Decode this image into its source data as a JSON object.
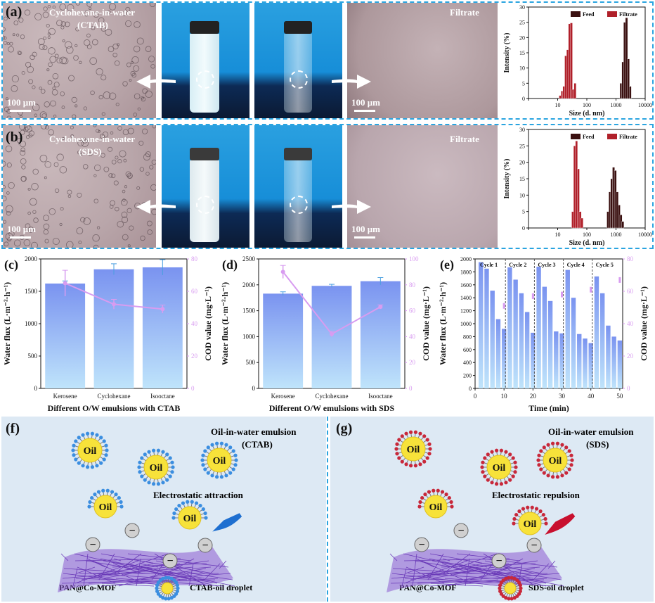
{
  "colors": {
    "frame": "#2aa4e0",
    "bar_blue": "#7a93f0",
    "bar_light": "#bfe4fb",
    "cod_line": "#d89cf0",
    "feed": "#3a1010",
    "filtrate": "#b0202a",
    "mof_purple": "#8a5ad0",
    "panel_bg": "#dde9f4",
    "oil_yellow": "#f7e23a",
    "ctab_head": "#3b8ee0",
    "sds_head": "#c8283a"
  },
  "panel_a": {
    "letter": "(a)",
    "title_line1": "Cyclohexane-in-water",
    "title_line2": "(CTAB)",
    "scale_left": "100 μm",
    "filtrate": "Filtrate",
    "scale_right": "100 μm"
  },
  "panel_b": {
    "letter": "(b)",
    "title_line1": "Cyclohexane-in-water",
    "title_line2": "(SDS)",
    "scale_left": "100 μm",
    "filtrate": "Filtrate",
    "scale_right": "100 μm"
  },
  "panel_c": {
    "letter": "(c)"
  },
  "panel_d": {
    "letter": "(d)"
  },
  "panel_e": {
    "letter": "(e)"
  },
  "panel_f": {
    "letter": "(f)",
    "title_line1": "Oil-in-water emulsion",
    "title_line2": "(CTAB)",
    "interaction": "Electrostatic attraction",
    "oil": "Oil",
    "membrane": "PAN@Co-MOF",
    "droplet": "CTAB-oil droplet"
  },
  "panel_g": {
    "letter": "(g)",
    "title_line1": "Oil-in-water emulsion",
    "title_line2": "(SDS)",
    "interaction": "Electrostatic repulsion",
    "oil": "Oil",
    "membrane": "PAN@Co-MOF",
    "droplet": "SDS-oil droplet"
  },
  "chart_data": [
    {
      "id": "a_dls",
      "type": "bar",
      "xlabel": "Size (d. nm)",
      "ylabel": "Intensity (%)",
      "xscale": "log",
      "xlim": [
        1,
        10000
      ],
      "xticks": [
        "1",
        "10",
        "100",
        "1000",
        "10000"
      ],
      "ylim": [
        0,
        30
      ],
      "yticks": [
        "0",
        "5",
        "10",
        "15",
        "20",
        "25",
        "30"
      ],
      "legend": "top-right",
      "series": [
        {
          "name": "Feed",
          "color": "#3a1010",
          "x": [
            1480,
            1720,
            1990,
            2300,
            2660,
            3080
          ],
          "y": [
            5,
            12,
            25,
            26.5,
            13,
            4
          ]
        },
        {
          "name": "Filtrate",
          "color": "#b0202a",
          "x": [
            12.2,
            14.2,
            16.4,
            19,
            22,
            25.5,
            29.5,
            34,
            39.5
          ],
          "y": [
            1,
            2.5,
            4,
            14,
            16,
            24.5,
            24.8,
            3,
            5
          ]
        }
      ]
    },
    {
      "id": "b_dls",
      "type": "bar",
      "xlabel": "Size (d. nm)",
      "ylabel": "Intensity (%)",
      "xscale": "log",
      "xlim": [
        1,
        10000
      ],
      "xticks": [
        "1",
        "10",
        "100",
        "1000",
        "10000"
      ],
      "ylim": [
        0,
        30
      ],
      "yticks": [
        "0",
        "5",
        "10",
        "15",
        "20",
        "25",
        "30"
      ],
      "legend": "top-right",
      "series": [
        {
          "name": "Feed",
          "color": "#3a1010",
          "x": [
            530,
            615,
            712,
            825,
            955,
            1106,
            1281,
            1484,
            1718
          ],
          "y": [
            5,
            11,
            15,
            18.5,
            17.5,
            11,
            7,
            4,
            2
          ]
        },
        {
          "name": "Filtrate",
          "color": "#b0202a",
          "x": [
            33,
            38.2,
            44.2,
            51.2,
            59.3,
            68.6
          ],
          "y": [
            5,
            25,
            26.5,
            18,
            5,
            3
          ]
        }
      ]
    },
    {
      "id": "c",
      "type": "bar",
      "xlabel": "Different O/W emulsions with CTAB",
      "ylabel": "Water flux (L·m⁻²·h⁻¹)",
      "y2label": "COD value (mg·L⁻¹)",
      "categories": [
        "Kerosene",
        "Cyclohexane",
        "Isooctane"
      ],
      "ylim": [
        0,
        2000
      ],
      "yticks": [
        "0",
        "500",
        "1000",
        "1500",
        "2000"
      ],
      "y2lim": [
        0,
        80
      ],
      "y2ticks": [
        "0",
        "20",
        "40",
        "60",
        "80"
      ],
      "series": [
        {
          "name": "Water flux",
          "values": [
            1620,
            1840,
            1870
          ],
          "err": [
            40,
            85,
            120
          ]
        },
        {
          "name": "COD",
          "axis": "right",
          "values": [
            65,
            52,
            49
          ],
          "err": [
            8,
            3,
            2.5
          ]
        }
      ]
    },
    {
      "id": "d",
      "type": "bar",
      "xlabel": "Different O/W emulsions with SDS",
      "ylabel": "Water flux (L·m⁻²·h⁻¹)",
      "y2label": "COD value (mg·L⁻¹)",
      "categories": [
        "Kerosene",
        "Cyclohexane",
        "Isooctane"
      ],
      "ylim": [
        0,
        2500
      ],
      "yticks": [
        "0",
        "500",
        "1000",
        "1500",
        "2000",
        "2500"
      ],
      "y2lim": [
        0,
        100
      ],
      "y2ticks": [
        "0",
        "20",
        "40",
        "60",
        "80",
        "100"
      ],
      "series": [
        {
          "name": "Water flux",
          "values": [
            1830,
            1980,
            2070
          ],
          "err": [
            35,
            30,
            70
          ]
        },
        {
          "name": "COD",
          "axis": "right",
          "values": [
            90,
            42,
            63
          ],
          "err": [
            5,
            2,
            1.5
          ]
        }
      ]
    },
    {
      "id": "e",
      "type": "bar",
      "xlabel": "Time (min)",
      "ylabel": "Water flux (L·m⁻²·h⁻¹)",
      "y2label": "COD value (mg·L⁻¹)",
      "xlim": [
        0,
        51
      ],
      "xticks": [
        "0",
        "10",
        "20",
        "30",
        "40",
        "50"
      ],
      "ylim": [
        0,
        2000
      ],
      "yticks": [
        "0",
        "200",
        "400",
        "600",
        "800",
        "1000",
        "1200",
        "1400",
        "1600",
        "1800",
        "2000"
      ],
      "y2lim": [
        0,
        80
      ],
      "y2ticks": [
        "0",
        "20",
        "40",
        "60",
        "80"
      ],
      "cycle_labels": [
        "Cycle 1",
        "Cycle 2",
        "Cycle 3",
        "Cycle 4",
        "Cycle 5"
      ],
      "cycle_bounds": [
        10.5,
        20.5,
        30.5,
        40.5
      ],
      "series": [
        {
          "name": "Water flux",
          "x": [
            2,
            4,
            6,
            8,
            10,
            12,
            14,
            16,
            18,
            20,
            22,
            24,
            26,
            28,
            30,
            32,
            34,
            36,
            38,
            40,
            42,
            44,
            46,
            48,
            50
          ],
          "values": [
            1950,
            1850,
            1510,
            1070,
            920,
            1870,
            1680,
            1470,
            1180,
            860,
            1880,
            1570,
            1350,
            880,
            850,
            1830,
            1400,
            840,
            770,
            700,
            1730,
            1470,
            970,
            800,
            740
          ]
        },
        {
          "name": "COD",
          "axis": "right",
          "x": [
            10,
            20,
            30,
            40,
            50
          ],
          "values": [
            51,
            57,
            58,
            61,
            67
          ]
        }
      ]
    }
  ]
}
